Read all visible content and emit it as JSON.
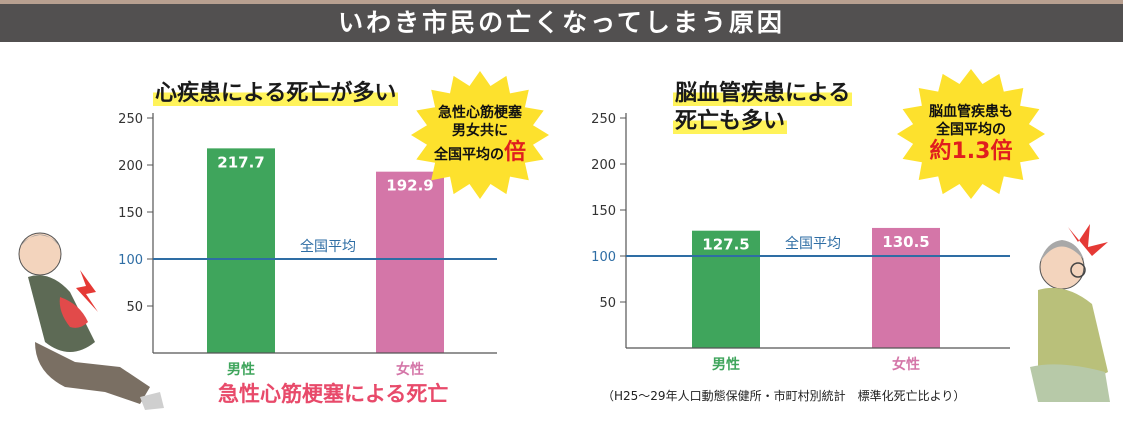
{
  "banner": {
    "title": "いわき市民の亡くなってしまう原因"
  },
  "left": {
    "headline": "心疾患による死亡が多い",
    "burst": {
      "line1": "急性心筋梗塞",
      "line2": "男女共に",
      "line3": "全国平均の",
      "emphasis": "倍"
    },
    "caption": "急性心筋梗塞による死亡"
  },
  "right": {
    "headline_line1": "脳血管疾患による",
    "headline_line2": "死亡も多い",
    "burst": {
      "line1": "脳血管疾患も",
      "line2": "全国平均の",
      "emphasis": "約1.3倍"
    },
    "source": "（H25〜29年人口動態保健所・市町村別統計　標準化死亡比より）"
  },
  "colors": {
    "male": "#3fa55c",
    "female": "#d476a8",
    "reference": "#2e6da4",
    "burst": "#fde12d",
    "caption": "#e84a6a"
  },
  "chart_data": [
    {
      "type": "bar",
      "categories": [
        "男性",
        "女性"
      ],
      "values": [
        217.7,
        192.9
      ],
      "ylim": [
        0,
        250
      ],
      "yticks": [
        50,
        100,
        150,
        200,
        250
      ],
      "reference": {
        "value": 100,
        "label": "全国平均"
      }
    },
    {
      "type": "bar",
      "categories": [
        "男性",
        "女性"
      ],
      "values": [
        127.5,
        130.5
      ],
      "ylim": [
        0,
        250
      ],
      "yticks": [
        50,
        100,
        150,
        200,
        250
      ],
      "reference": {
        "value": 100,
        "label": "全国平均"
      }
    }
  ]
}
